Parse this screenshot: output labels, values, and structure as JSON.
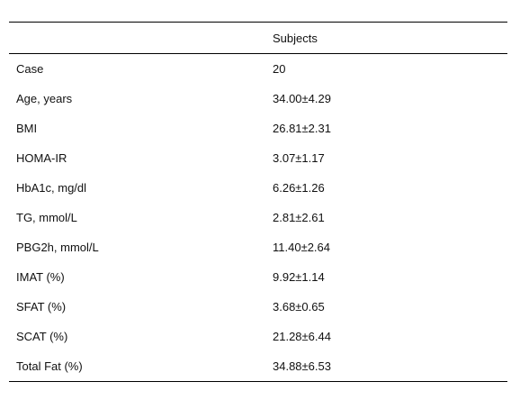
{
  "table": {
    "header": {
      "label": "",
      "value": "Subjects"
    },
    "rows": [
      {
        "label": "Case",
        "value": "20"
      },
      {
        "label": "Age, years",
        "value": "34.00±4.29"
      },
      {
        "label": "BMI",
        "value": "26.81±2.31"
      },
      {
        "label": "HOMA-IR",
        "value": "3.07±1.17"
      },
      {
        "label": "HbA1c, mg/dl",
        "value": "6.26±1.26"
      },
      {
        "label": "TG, mmol/L",
        "value": "2.81±2.61"
      },
      {
        "label": "PBG2h, mmol/L",
        "value": "11.40±2.64"
      },
      {
        "label": "IMAT (%)",
        "value": "9.92±1.14"
      },
      {
        "label": "SFAT (%)",
        "value": "3.68±0.65"
      },
      {
        "label": "SCAT (%)",
        "value": "21.28±6.44"
      },
      {
        "label": "Total Fat (%)",
        "value": "34.88±6.53"
      }
    ]
  }
}
